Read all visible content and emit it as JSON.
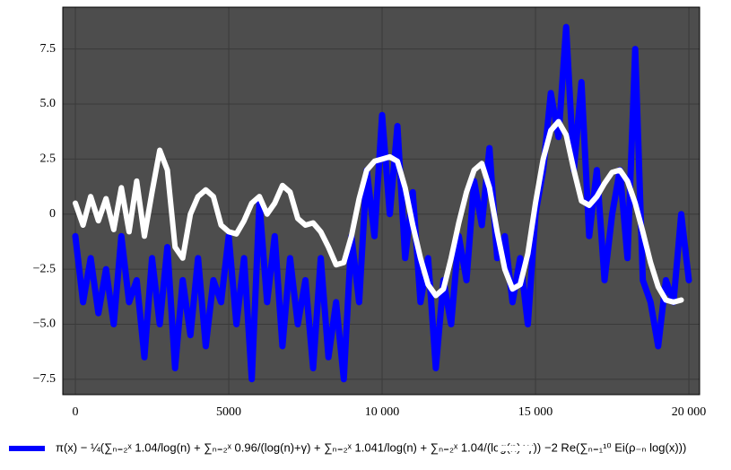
{
  "chart_data": {
    "type": "line",
    "x": [
      0,
      250,
      500,
      750,
      1000,
      1250,
      1500,
      1750,
      2000,
      2250,
      2500,
      2750,
      3000,
      3250,
      3500,
      3750,
      4000,
      4250,
      4500,
      4750,
      5000,
      5250,
      5500,
      5750,
      6000,
      6250,
      6500,
      6750,
      7000,
      7250,
      7500,
      7750,
      8000,
      8250,
      8500,
      8750,
      9000,
      9250,
      9500,
      9750,
      10000,
      10250,
      10500,
      10750,
      11000,
      11250,
      11500,
      11750,
      12000,
      12250,
      12500,
      12750,
      13000,
      13250,
      13500,
      13750,
      14000,
      14250,
      14500,
      14750,
      15000,
      15250,
      15500,
      15750,
      16000,
      16250,
      16500,
      16750,
      17000,
      17250,
      17500,
      17750,
      18000,
      18250,
      18500,
      18750,
      19000,
      19250,
      19500,
      19750,
      20000
    ],
    "series": [
      {
        "name": "π(x) − ¼(∑ₙ₌₂ˣ 1.04/log(n) + ∑ₙ₌₂ˣ 0.96/(log(n)+γ) + ∑ₙ₌₂ˣ 1.041/log(n) + ∑ₙ₌₂ˣ 1.04/(log(n)+γ))",
        "color": "#0000ff",
        "values": [
          -1,
          -4,
          -2,
          -4.5,
          -2.5,
          -5,
          -1,
          -4,
          -3,
          -6.5,
          -2,
          -5,
          -1.5,
          -7,
          -3,
          -5.5,
          -2,
          -6,
          -3,
          -4,
          -1,
          -5,
          -2,
          -7.5,
          0.5,
          -4,
          -1,
          -6,
          -2,
          -5,
          -3,
          -7,
          -2,
          -6.5,
          -4,
          -7.5,
          -1,
          -4,
          2,
          -1,
          4.5,
          0,
          4,
          -2,
          1,
          -4,
          -2,
          -7,
          -3,
          -5,
          -1,
          -3,
          1.5,
          -0.5,
          3,
          -2,
          -1,
          -4,
          -2,
          -5,
          0,
          2,
          5.5,
          3.5,
          8.5,
          2,
          6,
          -1,
          2,
          -3,
          0,
          2,
          -2,
          7.5,
          -3,
          -4,
          -6,
          -3,
          -4,
          0,
          -3
        ]
      },
      {
        "name": "−2 Re(∑ₙ₌₁¹⁰ Ei(ρ₋ₙ log(x)))",
        "color": "#ffffff",
        "values": [
          0.5,
          -0.5,
          0.8,
          -0.3,
          0.7,
          -0.7,
          1.2,
          -0.8,
          1.5,
          -1.0,
          1.0,
          2.9,
          2.0,
          -1.5,
          -2.0,
          0.0,
          0.8,
          1.1,
          0.8,
          -0.5,
          -0.8,
          -0.9,
          -0.3,
          0.5,
          0.8,
          0.0,
          0.5,
          1.3,
          1.0,
          -0.2,
          -0.5,
          -0.4,
          -0.8,
          -1.5,
          -2.3,
          -2.2,
          -1.0,
          0.7,
          2.0,
          2.4,
          2.5,
          2.6,
          2.4,
          1.2,
          -0.5,
          -2.0,
          -3.2,
          -3.7,
          -3.4,
          -2.0,
          -0.4,
          1.0,
          2.0,
          2.3,
          1.2,
          -0.8,
          -2.5,
          -3.4,
          -3.2,
          -1.8,
          0.5,
          2.5,
          3.8,
          4.2,
          3.6,
          2.0,
          0.6,
          0.4,
          0.8,
          1.4,
          1.9,
          2.0,
          1.5,
          0.5,
          -0.8,
          -2.2,
          -3.3,
          -3.9,
          -4.0,
          -3.9,
          null
        ]
      }
    ],
    "xlim": [
      -410,
      20350
    ],
    "ylim": [
      -8.2,
      9.4
    ],
    "xticks": [
      0,
      5000,
      {
        "value": 10000,
        "label": "10 000"
      },
      {
        "value": 15000,
        "label": "15 000"
      },
      {
        "value": 20000,
        "label": "20 000"
      }
    ],
    "yticks": [
      {
        "value": -7.5,
        "label": "−7.5"
      },
      {
        "value": -5,
        "label": "−5.0"
      },
      {
        "value": -2.5,
        "label": "−2.5"
      },
      0,
      2.5,
      {
        "value": 5,
        "label": "5.0"
      },
      7.5
    ],
    "grid": true,
    "background": "#4d4d4d",
    "legend": "bottom"
  }
}
